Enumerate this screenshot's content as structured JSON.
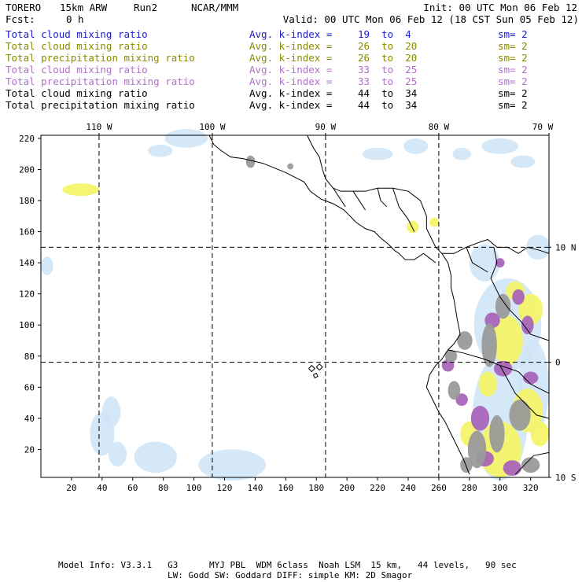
{
  "header": {
    "model": "TORERO",
    "resolution": "15km ARW",
    "run": "Run2",
    "org": "NCAR/MMM",
    "init": "Init: 00 UTC Mon 06 Feb 12",
    "fcst_label": "Fcst:",
    "fcst_value": "0 h",
    "valid": "Valid: 00 UTC Mon 06 Feb 12 (18 CST Sun 05 Feb 12)"
  },
  "legend": [
    {
      "name": "Total cloud mixing ratio",
      "k_label": "Avg. k-index =",
      "k_from": "19",
      "to": "to",
      "k_to": "4",
      "sm": "sm= 2",
      "color": "#1a1ad0"
    },
    {
      "name": "Total cloud mixing ratio",
      "k_label": "Avg. k-index =",
      "k_from": "26",
      "to": "to",
      "k_to": "20",
      "sm": "sm= 2",
      "color": "#8a8a00"
    },
    {
      "name": "Total precipitation mixing ratio",
      "k_label": "Avg. k-index =",
      "k_from": "26",
      "to": "to",
      "k_to": "20",
      "sm": "sm= 2",
      "color": "#8a8a00"
    },
    {
      "name": "Total cloud mixing ratio",
      "k_label": "Avg. k-index =",
      "k_from": "33",
      "to": "to",
      "k_to": "25",
      "sm": "sm= 2",
      "color": "#b070c8"
    },
    {
      "name": "Total precipitation mixing ratio",
      "k_label": "Avg. k-index =",
      "k_from": "33",
      "to": "to",
      "k_to": "25",
      "sm": "sm= 2",
      "color": "#b070c8"
    },
    {
      "name": "Total cloud mixing ratio",
      "k_label": "Avg. k-index =",
      "k_from": "44",
      "to": "to",
      "k_to": "34",
      "sm": "sm= 2",
      "color": "#000000"
    },
    {
      "name": "Total precipitation mixing ratio",
      "k_label": "Avg. k-index =",
      "k_from": "44",
      "to": "to",
      "k_to": "34",
      "sm": "sm= 2",
      "color": "#000000"
    }
  ],
  "map": {
    "lon_labels": [
      "110 W",
      "100 W",
      "90 W",
      "80 W",
      "70 W"
    ],
    "lat_labels": [
      "10 N",
      "0",
      "10 S"
    ],
    "x_ticks": [
      "20",
      "40",
      "60",
      "80",
      "100",
      "120",
      "140",
      "160",
      "180",
      "200",
      "220",
      "240",
      "260",
      "280",
      "300",
      "320"
    ],
    "y_ticks": [
      "20",
      "40",
      "60",
      "80",
      "100",
      "120",
      "140",
      "160",
      "180",
      "200",
      "220"
    ],
    "x_range": [
      0,
      332
    ],
    "y_range": [
      2,
      222
    ],
    "lon_lines": [
      38,
      112,
      186,
      260
    ],
    "lat_lines": [
      76,
      150
    ],
    "colors": {
      "light_blue": "#cfe6f7",
      "yellow": "#f4f46a",
      "purple": "#a865b8",
      "gray": "#9a9a9a",
      "coast": "#000000"
    }
  },
  "footer": {
    "line1": "Model Info: V3.3.1   G3      MYJ PBL  WDM 6class  Noah LSM  15 km,   44 levels,   90 sec",
    "line2": "LW: Godd SW: Goddard DIFF: simple KM: 2D Smagor"
  }
}
